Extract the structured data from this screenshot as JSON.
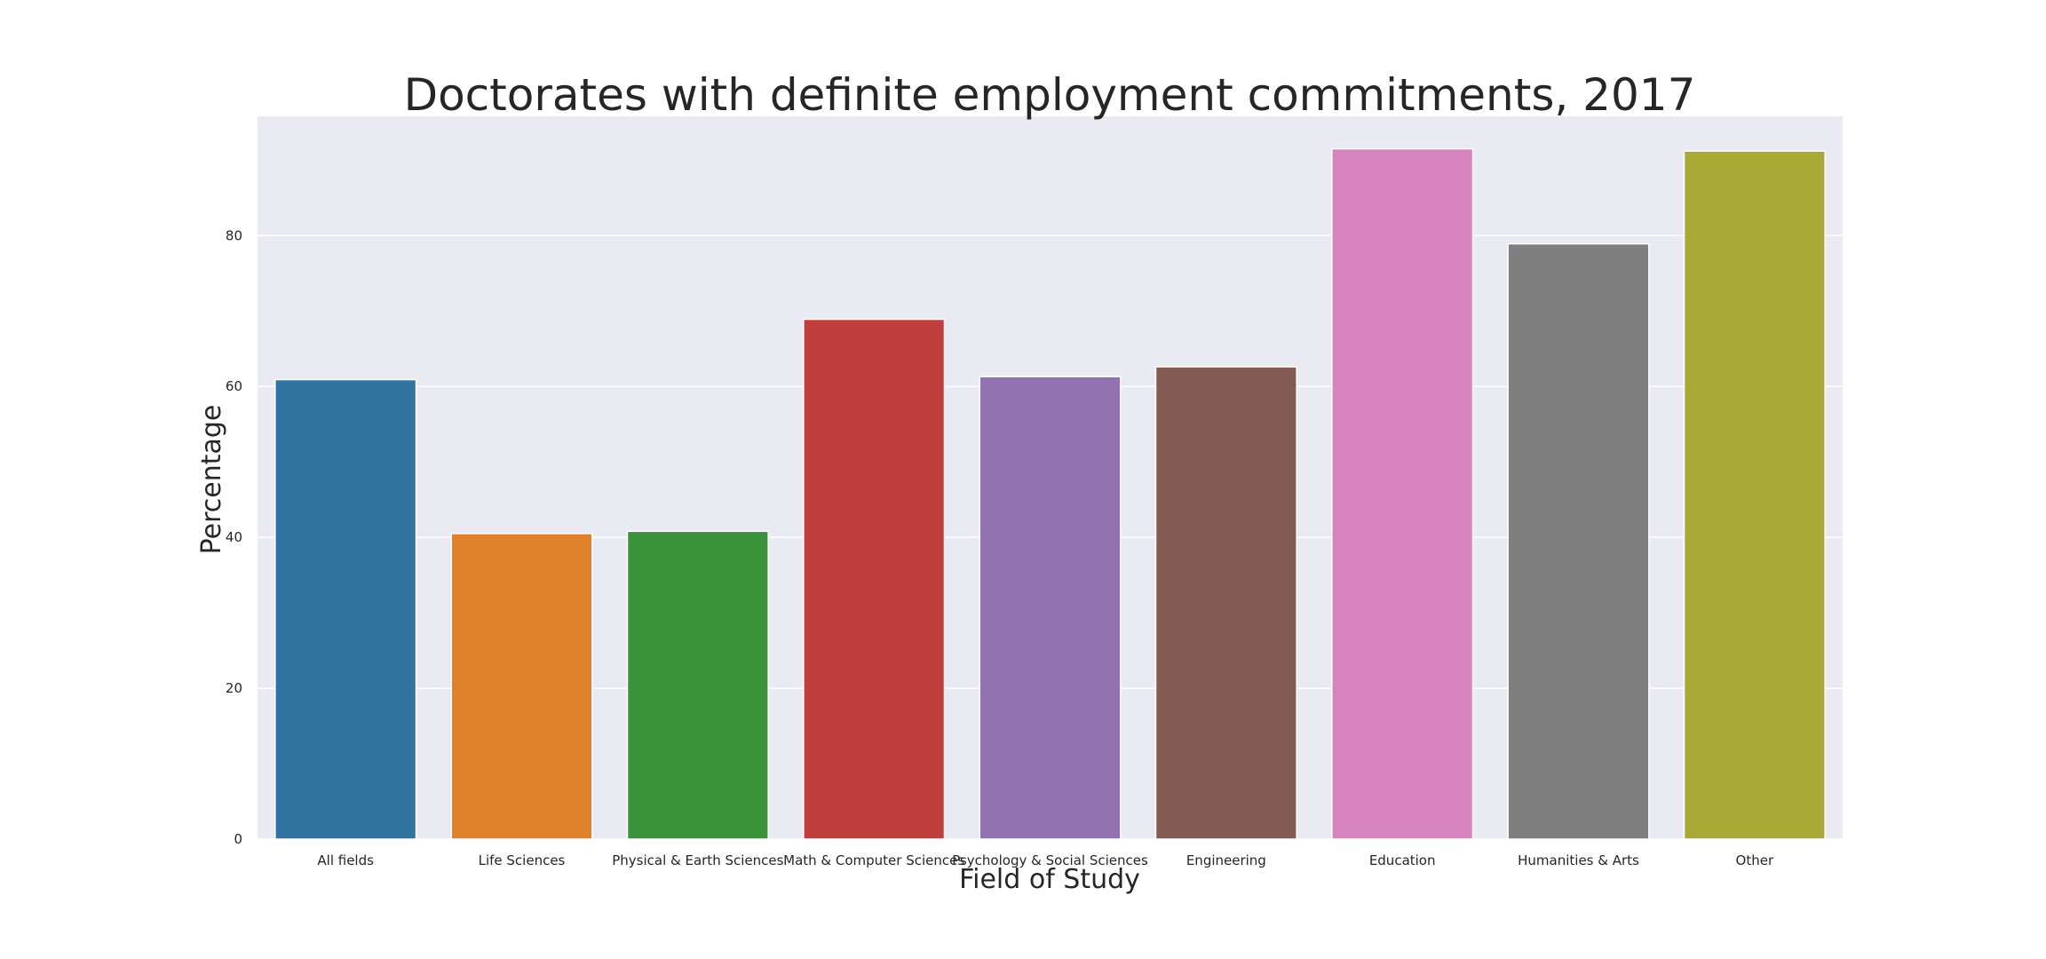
{
  "chart_data": {
    "type": "bar",
    "title": "Doctorates with definite employment commitments, 2017",
    "xlabel": "Field of Study",
    "ylabel": "Percentage",
    "categories": [
      "All fields",
      "Life Sciences",
      "Physical & Earth Sciences",
      "Math & Computer Sciences",
      "Psychology & Social Sciences",
      "Engineering",
      "Education",
      "Humanities & Arts",
      "Other"
    ],
    "values": [
      60.9,
      40.5,
      40.8,
      68.9,
      61.3,
      62.6,
      91.5,
      78.9,
      91.2
    ],
    "colors": [
      "#3274a1",
      "#e1812c",
      "#3a923a",
      "#c03d3e",
      "#9372b2",
      "#845b53",
      "#d684bd",
      "#7f7f7f",
      "#a9aa35"
    ],
    "yticks": [
      0,
      20,
      40,
      60,
      80
    ],
    "ylim": [
      0,
      95.8
    ],
    "grid": true,
    "background": "#eaeaf2",
    "legend": "none"
  }
}
